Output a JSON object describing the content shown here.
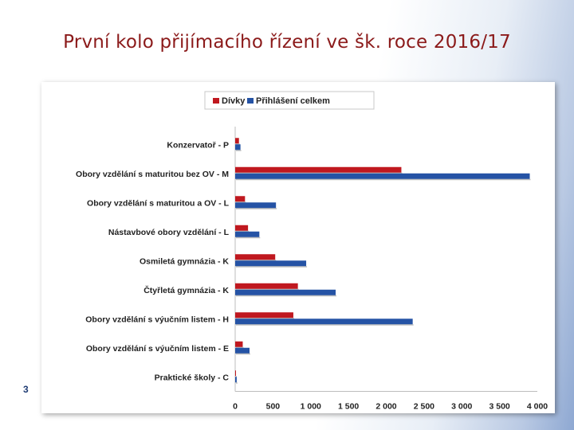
{
  "slide": {
    "title": "První kolo přijímacího řízení ve šk. roce 2016/17",
    "page_number": "3",
    "colors": {
      "title": "#8b1a1a",
      "page_number": "#1f3b73"
    }
  },
  "chart_data": {
    "type": "bar",
    "orientation": "horizontal",
    "title": "",
    "xlabel": "",
    "ylabel": "",
    "xlim": [
      0,
      4000
    ],
    "x_ticks": [
      0,
      500,
      1000,
      1500,
      2000,
      2500,
      3000,
      3500,
      4000
    ],
    "x_tick_labels": [
      "0",
      "500",
      "1 000",
      "1 500",
      "2 000",
      "2 500",
      "3 000",
      "3 500",
      "4 000"
    ],
    "grid": false,
    "legend_position": "top",
    "categories": [
      "Konzervatoř - P",
      "Obory vzdělání s maturitou bez OV - M",
      "Obory vzdělání s maturitou a OV - L",
      "Nástavbové obory vzdělání - L",
      "Osmiletá gymnázia - K",
      "Čtyřletá gymnázia - K",
      "Obory vzdělání s výučním listem - H",
      "Obory vzdělání s výučním listem - E",
      "Praktické školy - C"
    ],
    "series": [
      {
        "name": "Dívky",
        "color": "#c0181f",
        "values": [
          50,
          2200,
          130,
          170,
          530,
          830,
          770,
          100,
          10
        ]
      },
      {
        "name": "Přihlášení celkem",
        "color": "#2553a5",
        "values": [
          70,
          3900,
          540,
          320,
          940,
          1330,
          2350,
          190,
          20
        ]
      }
    ]
  }
}
